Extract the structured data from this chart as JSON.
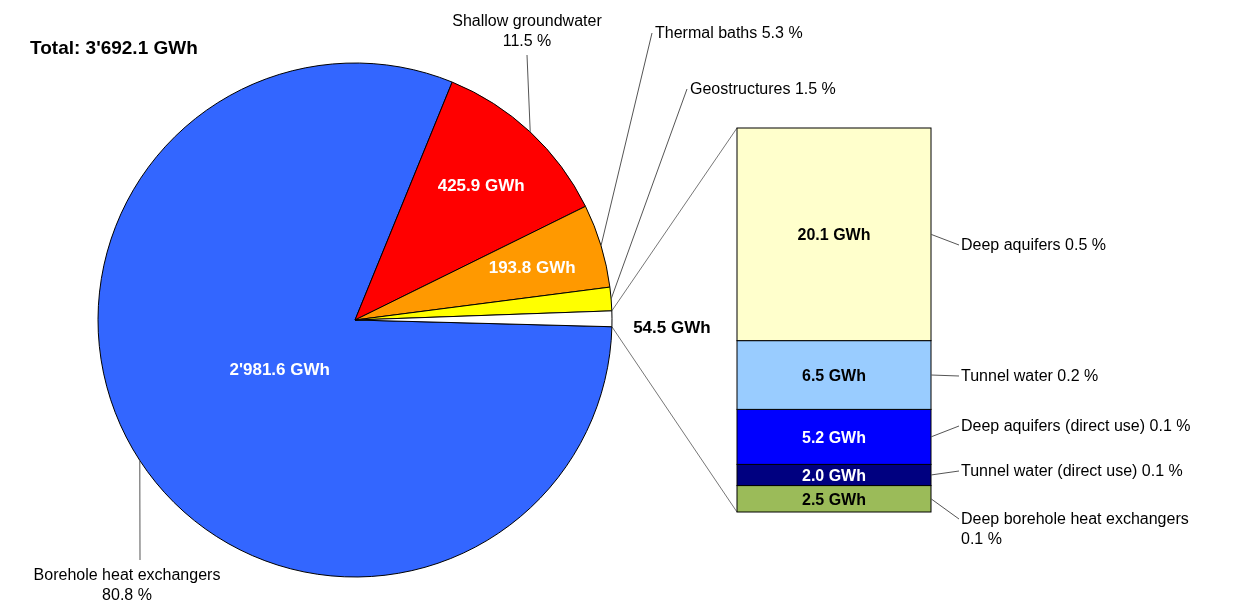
{
  "chart_data": [
    {
      "type": "pie",
      "title": "Total: 3'692.1 GWh",
      "categories": [
        "Borehole heat exchangers\n80.8 %",
        "Shallow groundwater\n11.5 %",
        "Thermal baths 5.3 %",
        "Geostructures 1.5 %",
        null
      ],
      "values": [
        2981.6,
        425.9,
        193.8,
        54.5,
        36.3
      ],
      "colors": [
        "#3366ff",
        "#ff0000",
        "#ff9900",
        "#ffff00",
        "#ffffff"
      ],
      "value_labels": [
        "2'981.6 GWh",
        "425.9 GWh",
        "193.8 GWh",
        "54.5 GWh",
        null
      ]
    },
    {
      "type": "bar",
      "stacked": true,
      "categories": [
        null
      ],
      "series": [
        {
          "name": "Deep borehole heat exchangers\n0.1 %",
          "color": "#9bbb59",
          "values": [
            2.5
          ],
          "value_labels": [
            "2.5 GWh"
          ]
        },
        {
          "name": "Tunnel water (direct use) 0.1 %",
          "color": "#000080",
          "values": [
            2.0
          ],
          "value_labels": [
            "2.0 GWh"
          ]
        },
        {
          "name": "Deep aquifers (direct use) 0.1 %",
          "color": "#0000ff",
          "values": [
            5.2
          ],
          "value_labels": [
            "5.2 GWh"
          ]
        },
        {
          "name": "Tunnel water 0.2 %",
          "color": "#99ccff",
          "values": [
            6.5
          ],
          "value_labels": [
            "6.5 GWh"
          ]
        },
        {
          "name": "Deep aquifers 0.5 %",
          "color": "#ffffcc",
          "values": [
            20.1
          ],
          "value_labels": [
            "20.1 GWh"
          ]
        }
      ]
    }
  ]
}
